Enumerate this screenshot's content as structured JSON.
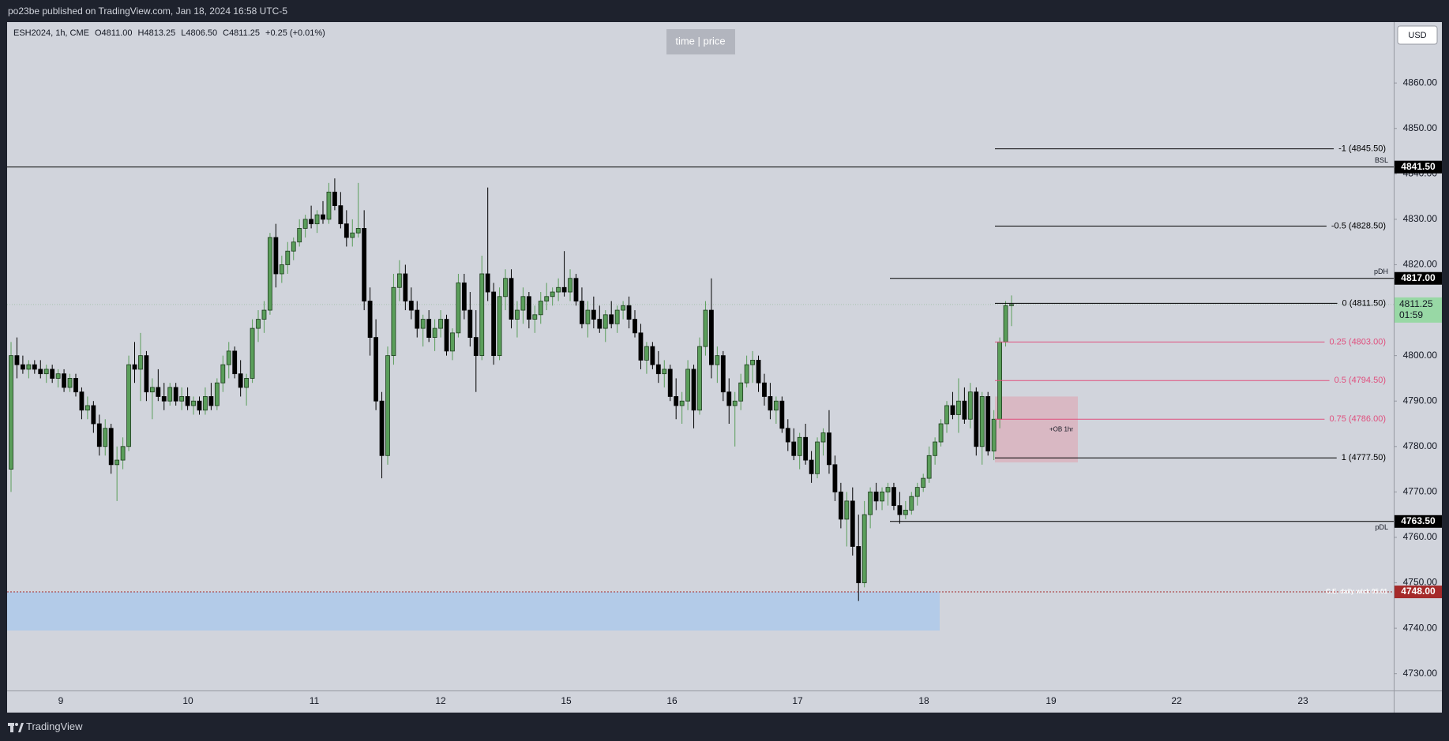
{
  "header": {
    "title": "po23be published on TradingView.com, Jan 18, 2024 16:58 UTC-5"
  },
  "footer": {
    "brand": "TradingView"
  },
  "chart_data": {
    "type": "candlestick",
    "legend_text": [
      "ESH2024, 1h, CME",
      "O4811.00",
      "H4813.25",
      "L4806.50",
      "C4811.25",
      "+0.25 (+0.01%)"
    ],
    "currency": "USD",
    "watermark": "time | price",
    "up_color": "#5a9e5a",
    "down_color": "#000000",
    "border_color": "#1b3b1b",
    "ylim": [
      4726.3,
      4873.4
    ],
    "yticks": [
      {
        "value": 4730,
        "label": "4730.00"
      },
      {
        "value": 4740,
        "label": "4740.00"
      },
      {
        "value": 4750,
        "label": "4750.00"
      },
      {
        "value": 4760,
        "label": "4760.00"
      },
      {
        "value": 4770,
        "label": "4770.00"
      },
      {
        "value": 4780,
        "label": "4780.00"
      },
      {
        "value": 4790,
        "label": "4790.00"
      },
      {
        "value": 4800,
        "label": "4800.00"
      },
      {
        "value": 4810,
        "label": "4810.00"
      },
      {
        "value": 4820,
        "label": "4820.00"
      },
      {
        "value": 4830,
        "label": "4830.00"
      },
      {
        "value": 4840,
        "label": "4840.00"
      },
      {
        "value": 4850,
        "label": "4850.00"
      },
      {
        "value": 4860,
        "label": "4860.00"
      }
    ],
    "x_labels": [
      "9",
      "10",
      "11",
      "12",
      "15",
      "16",
      "17",
      "18",
      "19",
      "22",
      "23"
    ],
    "ohlc": [
      [
        4775,
        4803,
        4770,
        4800
      ],
      [
        4800,
        4804,
        4795,
        4798
      ],
      [
        4798,
        4800,
        4796,
        4797
      ],
      [
        4797,
        4799,
        4795,
        4798
      ],
      [
        4798,
        4799,
        4796,
        4797
      ],
      [
        4797,
        4799,
        4795,
        4796
      ],
      [
        4796,
        4798,
        4794,
        4797
      ],
      [
        4797,
        4798,
        4794,
        4795
      ],
      [
        4795,
        4797,
        4793,
        4796
      ],
      [
        4796,
        4797,
        4792,
        4793
      ],
      [
        4793,
        4796,
        4792,
        4795
      ],
      [
        4795,
        4796,
        4791,
        4792
      ],
      [
        4792,
        4793,
        4786,
        4788
      ],
      [
        4788,
        4791,
        4786,
        4789
      ],
      [
        4789,
        4790,
        4783,
        4785
      ],
      [
        4785,
        4787,
        4778,
        4780
      ],
      [
        4780,
        4786,
        4778,
        4784
      ],
      [
        4784,
        4785,
        4774,
        4776
      ],
      [
        4776,
        4780,
        4768,
        4777
      ],
      [
        4777,
        4782,
        4775,
        4780
      ],
      [
        4780,
        4800,
        4779,
        4798
      ],
      [
        4798,
        4803,
        4794,
        4797
      ],
      [
        4797,
        4805,
        4790,
        4800
      ],
      [
        4800,
        4801,
        4790,
        4792
      ],
      [
        4792,
        4795,
        4786,
        4793
      ],
      [
        4793,
        4797,
        4790,
        4791
      ],
      [
        4791,
        4794,
        4788,
        4790
      ],
      [
        4790,
        4794,
        4789,
        4793
      ],
      [
        4793,
        4794,
        4789,
        4790
      ],
      [
        4790,
        4793,
        4788,
        4791
      ],
      [
        4791,
        4793,
        4788,
        4789
      ],
      [
        4789,
        4791,
        4787,
        4790
      ],
      [
        4790,
        4791,
        4787,
        4788
      ],
      [
        4788,
        4793,
        4787,
        4791
      ],
      [
        4791,
        4794,
        4788,
        4789
      ],
      [
        4789,
        4795,
        4788,
        4794
      ],
      [
        4794,
        4800,
        4792,
        4798
      ],
      [
        4798,
        4803,
        4795,
        4801
      ],
      [
        4801,
        4802,
        4795,
        4796
      ],
      [
        4796,
        4799,
        4791,
        4793
      ],
      [
        4793,
        4796,
        4789,
        4795
      ],
      [
        4795,
        4808,
        4794,
        4806
      ],
      [
        4806,
        4810,
        4803,
        4808
      ],
      [
        4808,
        4812,
        4805,
        4810
      ],
      [
        4810,
        4827,
        4809,
        4826
      ],
      [
        4826,
        4829,
        4815,
        4818
      ],
      [
        4818,
        4822,
        4816,
        4820
      ],
      [
        4820,
        4825,
        4818,
        4823
      ],
      [
        4823,
        4826,
        4821,
        4825
      ],
      [
        4825,
        4830,
        4824,
        4828
      ],
      [
        4828,
        4831,
        4826,
        4830
      ],
      [
        4830,
        4833,
        4828,
        4829
      ],
      [
        4829,
        4832,
        4827,
        4831
      ],
      [
        4831,
        4834,
        4829,
        4830
      ],
      [
        4830,
        4838,
        4829,
        4836
      ],
      [
        4836,
        4839,
        4832,
        4833
      ],
      [
        4833,
        4836,
        4828,
        4829
      ],
      [
        4829,
        4832,
        4824,
        4826
      ],
      [
        4826,
        4830,
        4824,
        4827
      ],
      [
        4827,
        4838,
        4826,
        4828
      ],
      [
        4828,
        4832,
        4810,
        4812
      ],
      [
        4812,
        4815,
        4800,
        4804
      ],
      [
        4804,
        4808,
        4788,
        4790
      ],
      [
        4790,
        4792,
        4773,
        4778
      ],
      [
        4778,
        4802,
        4776,
        4800
      ],
      [
        4800,
        4818,
        4798,
        4815
      ],
      [
        4815,
        4821,
        4812,
        4818
      ],
      [
        4818,
        4820,
        4810,
        4812
      ],
      [
        4812,
        4815,
        4808,
        4810
      ],
      [
        4810,
        4812,
        4804,
        4806
      ],
      [
        4806,
        4809,
        4802,
        4808
      ],
      [
        4808,
        4810,
        4803,
        4804
      ],
      [
        4804,
        4808,
        4801,
        4806
      ],
      [
        4806,
        4810,
        4804,
        4808
      ],
      [
        4808,
        4809,
        4800,
        4801
      ],
      [
        4801,
        4806,
        4799,
        4805
      ],
      [
        4805,
        4818,
        4804,
        4816
      ],
      [
        4816,
        4818,
        4808,
        4810
      ],
      [
        4810,
        4814,
        4802,
        4804
      ],
      [
        4804,
        4810,
        4792,
        4800
      ],
      [
        4800,
        4822,
        4799,
        4818
      ],
      [
        4818,
        4837,
        4812,
        4814
      ],
      [
        4814,
        4816,
        4798,
        4800
      ],
      [
        4800,
        4815,
        4799,
        4813
      ],
      [
        4813,
        4819,
        4810,
        4817
      ],
      [
        4817,
        4819,
        4806,
        4808
      ],
      [
        4808,
        4812,
        4804,
        4810
      ],
      [
        4810,
        4815,
        4807,
        4813
      ],
      [
        4813,
        4814,
        4806,
        4808
      ],
      [
        4808,
        4811,
        4805,
        4809
      ],
      [
        4809,
        4814,
        4807,
        4812
      ],
      [
        4812,
        4816,
        4810,
        4813
      ],
      [
        4813,
        4815,
        4811,
        4814
      ],
      [
        4814,
        4817,
        4812,
        4815
      ],
      [
        4815,
        4823,
        4813,
        4814
      ],
      [
        4814,
        4819,
        4812,
        4817
      ],
      [
        4817,
        4818,
        4811,
        4812
      ],
      [
        4812,
        4815,
        4806,
        4807
      ],
      [
        4807,
        4812,
        4804,
        4810
      ],
      [
        4810,
        4813,
        4806,
        4808
      ],
      [
        4808,
        4811,
        4805,
        4806
      ],
      [
        4806,
        4810,
        4803,
        4809
      ],
      [
        4809,
        4812,
        4806,
        4807
      ],
      [
        4807,
        4811,
        4805,
        4810
      ],
      [
        4810,
        4812,
        4808,
        4811
      ],
      [
        4811,
        4813,
        4806,
        4808
      ],
      [
        4808,
        4810,
        4804,
        4805
      ],
      [
        4805,
        4807,
        4797,
        4799
      ],
      [
        4799,
        4803,
        4796,
        4802
      ],
      [
        4802,
        4803,
        4797,
        4798
      ],
      [
        4798,
        4801,
        4794,
        4796
      ],
      [
        4796,
        4799,
        4793,
        4797
      ],
      [
        4797,
        4798,
        4790,
        4791
      ],
      [
        4791,
        4795,
        4786,
        4789
      ],
      [
        4789,
        4792,
        4785,
        4790
      ],
      [
        4790,
        4799,
        4788,
        4797
      ],
      [
        4797,
        4798,
        4784,
        4788
      ],
      [
        4788,
        4804,
        4787,
        4802
      ],
      [
        4802,
        4812,
        4800,
        4810
      ],
      [
        4810,
        4817,
        4795,
        4798
      ],
      [
        4798,
        4802,
        4794,
        4800
      ],
      [
        4800,
        4801,
        4790,
        4792
      ],
      [
        4792,
        4795,
        4785,
        4789
      ],
      [
        4789,
        4792,
        4780,
        4790
      ],
      [
        4790,
        4796,
        4788,
        4794
      ],
      [
        4794,
        4800,
        4793,
        4798
      ],
      [
        4798,
        4801,
        4794,
        4799
      ],
      [
        4799,
        4800,
        4792,
        4794
      ],
      [
        4794,
        4796,
        4789,
        4791
      ],
      [
        4791,
        4794,
        4786,
        4788
      ],
      [
        4788,
        4791,
        4785,
        4790
      ],
      [
        4790,
        4791,
        4783,
        4784
      ],
      [
        4784,
        4786,
        4779,
        4781
      ],
      [
        4781,
        4784,
        4777,
        4778
      ],
      [
        4778,
        4783,
        4775,
        4782
      ],
      [
        4782,
        4785,
        4776,
        4777
      ],
      [
        4777,
        4779,
        4772,
        4774
      ],
      [
        4774,
        4782,
        4773,
        4781
      ],
      [
        4781,
        4784,
        4778,
        4783
      ],
      [
        4783,
        4788,
        4774,
        4776
      ],
      [
        4776,
        4778,
        4768,
        4770
      ],
      [
        4770,
        4772,
        4762,
        4764
      ],
      [
        4764,
        4770,
        4758,
        4768
      ],
      [
        4768,
        4771,
        4756,
        4758
      ],
      [
        4758,
        4765,
        4746,
        4750
      ],
      [
        4750,
        4768,
        4749,
        4765
      ],
      [
        4765,
        4771,
        4762,
        4770
      ],
      [
        4770,
        4772,
        4766,
        4768
      ],
      [
        4768,
        4771,
        4766,
        4770
      ],
      [
        4770,
        4772,
        4767,
        4771
      ],
      [
        4771,
        4772,
        4766,
        4767
      ],
      [
        4767,
        4770,
        4763,
        4765
      ],
      [
        4765,
        4768,
        4764,
        4766
      ],
      [
        4766,
        4770,
        4765,
        4769
      ],
      [
        4769,
        4772,
        4767,
        4771
      ],
      [
        4771,
        4774,
        4770,
        4773
      ],
      [
        4773,
        4780,
        4772,
        4778
      ],
      [
        4778,
        4782,
        4776,
        4781
      ],
      [
        4781,
        4786,
        4780,
        4785
      ],
      [
        4785,
        4790,
        4783,
        4789
      ],
      [
        4789,
        4792,
        4786,
        4787
      ],
      [
        4787,
        4795,
        4783,
        4790
      ],
      [
        4790,
        4793,
        4785,
        4786
      ],
      [
        4786,
        4794,
        4784,
        4792
      ],
      [
        4792,
        4793,
        4778,
        4780
      ],
      [
        4780,
        4792,
        4776,
        4791
      ],
      [
        4791,
        4792,
        4778,
        4779
      ],
      [
        4779,
        4788,
        4777,
        4786
      ],
      [
        4786,
        4804,
        4784,
        4803
      ],
      [
        4803,
        4812,
        4802,
        4811
      ],
      [
        4811,
        4813.25,
        4806.5,
        4811.25
      ]
    ],
    "levels": [
      {
        "name": "BSL",
        "value": 4841.5,
        "value_label": "4841.50",
        "color": "#000000",
        "side": "above"
      },
      {
        "name": "pDH",
        "value": 4817,
        "value_label": "4817.00",
        "color": "#000000",
        "side": "above"
      },
      {
        "name": "pDL",
        "value": 4763.5,
        "value_label": "4763.50",
        "color": "#000000",
        "side": "below"
      }
    ],
    "fib": [
      {
        "value": 4845.5,
        "label": "-1 (4845.50)",
        "color": "#000000"
      },
      {
        "value": 4828.5,
        "label": "-0.5 (4828.50)",
        "color": "#000000"
      },
      {
        "value": 4811.5,
        "label": "0 (4811.50)",
        "color": "#000000"
      },
      {
        "value": 4803,
        "label": "0.25 (4803.00)",
        "color": "#e0507e"
      },
      {
        "value": 4794.5,
        "label": "0.5 (4794.50)",
        "color": "#e0507e"
      },
      {
        "value": 4786,
        "label": "0.75 (4786.00)",
        "color": "#e0507e"
      },
      {
        "value": 4777.5,
        "label": "1 (4777.50)",
        "color": "#000000"
      }
    ],
    "order_block": {
      "label": "+OB 1hr",
      "range": [
        4776.5,
        4791
      ],
      "color": "rgba(226,150,165,0.45)"
    },
    "zone": {
      "range": [
        4739.5,
        4748
      ],
      "color": "#b3cbe8"
    },
    "ce_line": {
      "label": "C.E.  daily wick 05.01",
      "value": 4748,
      "value_label": "4748.00",
      "color": "#a52a2a"
    },
    "last_price": {
      "value": 4811.25,
      "value_label": "4811.25",
      "countdown": "01:59",
      "color": "#98d8a5"
    }
  }
}
